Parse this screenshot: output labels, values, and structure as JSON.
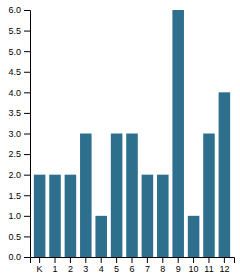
{
  "chart_data": {
    "type": "bar",
    "categories": [
      "K",
      "1",
      "2",
      "3",
      "4",
      "5",
      "6",
      "7",
      "8",
      "9",
      "10",
      "11",
      "12"
    ],
    "values": [
      2,
      2,
      2,
      3,
      1,
      3,
      3,
      2,
      2,
      6,
      1,
      3,
      4
    ],
    "color": "#2e6f8e",
    "ylim": [
      0,
      6
    ],
    "yticks": [
      {
        "value": 0,
        "label": "0.0"
      },
      0.5,
      {
        "value": 1,
        "label": "1.0"
      },
      1.5,
      {
        "value": 2,
        "label": "2.0"
      },
      2.5,
      {
        "value": 3,
        "label": "3.0"
      },
      3.5,
      {
        "value": 4,
        "label": "4.0"
      },
      4.5,
      {
        "value": 5,
        "label": "5.0"
      },
      5.5,
      {
        "value": 6,
        "label": "6.0"
      }
    ],
    "grid": false
  }
}
